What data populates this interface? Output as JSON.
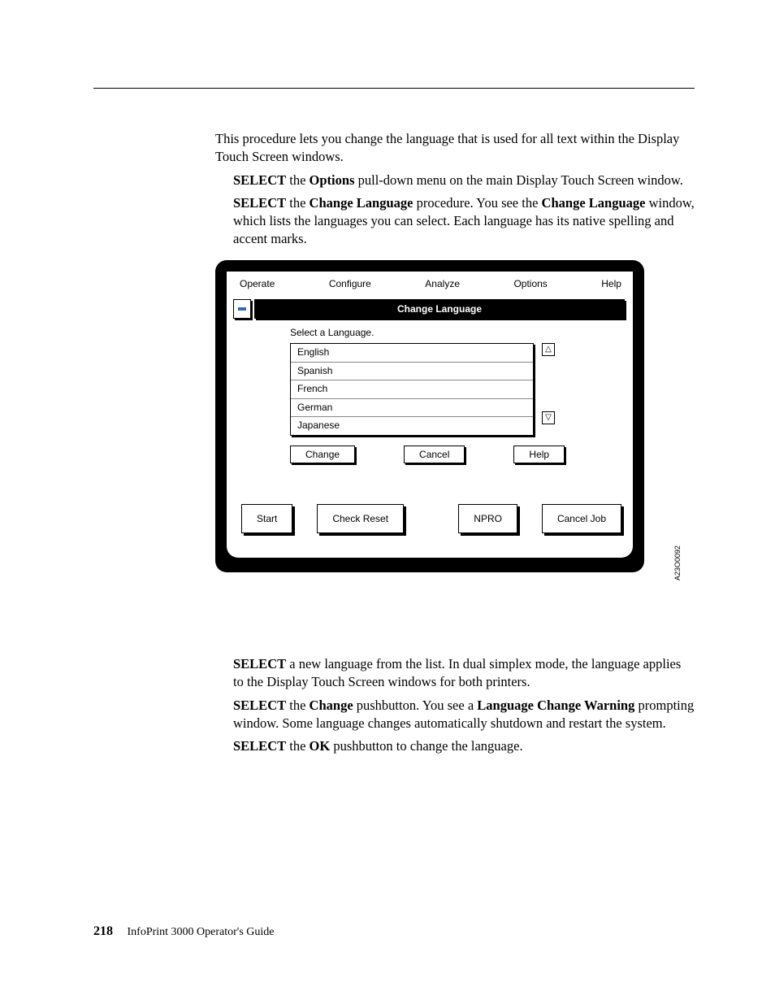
{
  "intro": "This procedure lets you change the language that is used for all text within the Display Touch Screen windows.",
  "step1_pre": "SELECT",
  "step1_mid": " the ",
  "step1_b2": "Options",
  "step1_post": " pull-down menu on the main Display Touch Screen window.",
  "step2_pre": "SELECT",
  "step2_mid": " the ",
  "step2_b2": "Change Language",
  "step2_mid2": " procedure. You see the ",
  "step2_b3": "Change Language",
  "step2_post": " window, which lists the languages you can select. Each language has its native spelling and accent marks.",
  "menu": {
    "operate": "Operate",
    "configure": "Configure",
    "analyze": "Analyze",
    "options": "Options",
    "help": "Help"
  },
  "dialog": {
    "title": "Change Language",
    "prompt": "Select a Language.",
    "items": {
      "0": "English",
      "1": "Spanish",
      "2": "French",
      "3": "German",
      "4": "Japanese"
    },
    "scroll_up": "△",
    "scroll_down": "▽",
    "change": "Change",
    "cancel": "Cancel",
    "help": "Help"
  },
  "bottom": {
    "start": "Start",
    "check_reset": "Check Reset",
    "npro": "NPRO",
    "cancel_job": "Cancel Job"
  },
  "figure_id": "A23O0092",
  "step3_pre": "SELECT",
  "step3_post": " a new language from the list. In dual simplex mode, the language applies to the Display Touch Screen windows for both printers.",
  "step4_pre": "SELECT",
  "step4_mid": " the ",
  "step4_b2": "Change",
  "step4_mid2": " pushbutton. You see a ",
  "step4_b3": "Language Change Warning",
  "step4_post": " prompting window. Some language changes automatically shutdown and restart the system.",
  "step5_pre": "SELECT",
  "step5_mid": " the ",
  "step5_b2": "OK",
  "step5_post": " pushbutton to change the language.",
  "footer": {
    "page": "218",
    "title": "InfoPrint 3000 Operator's Guide"
  }
}
